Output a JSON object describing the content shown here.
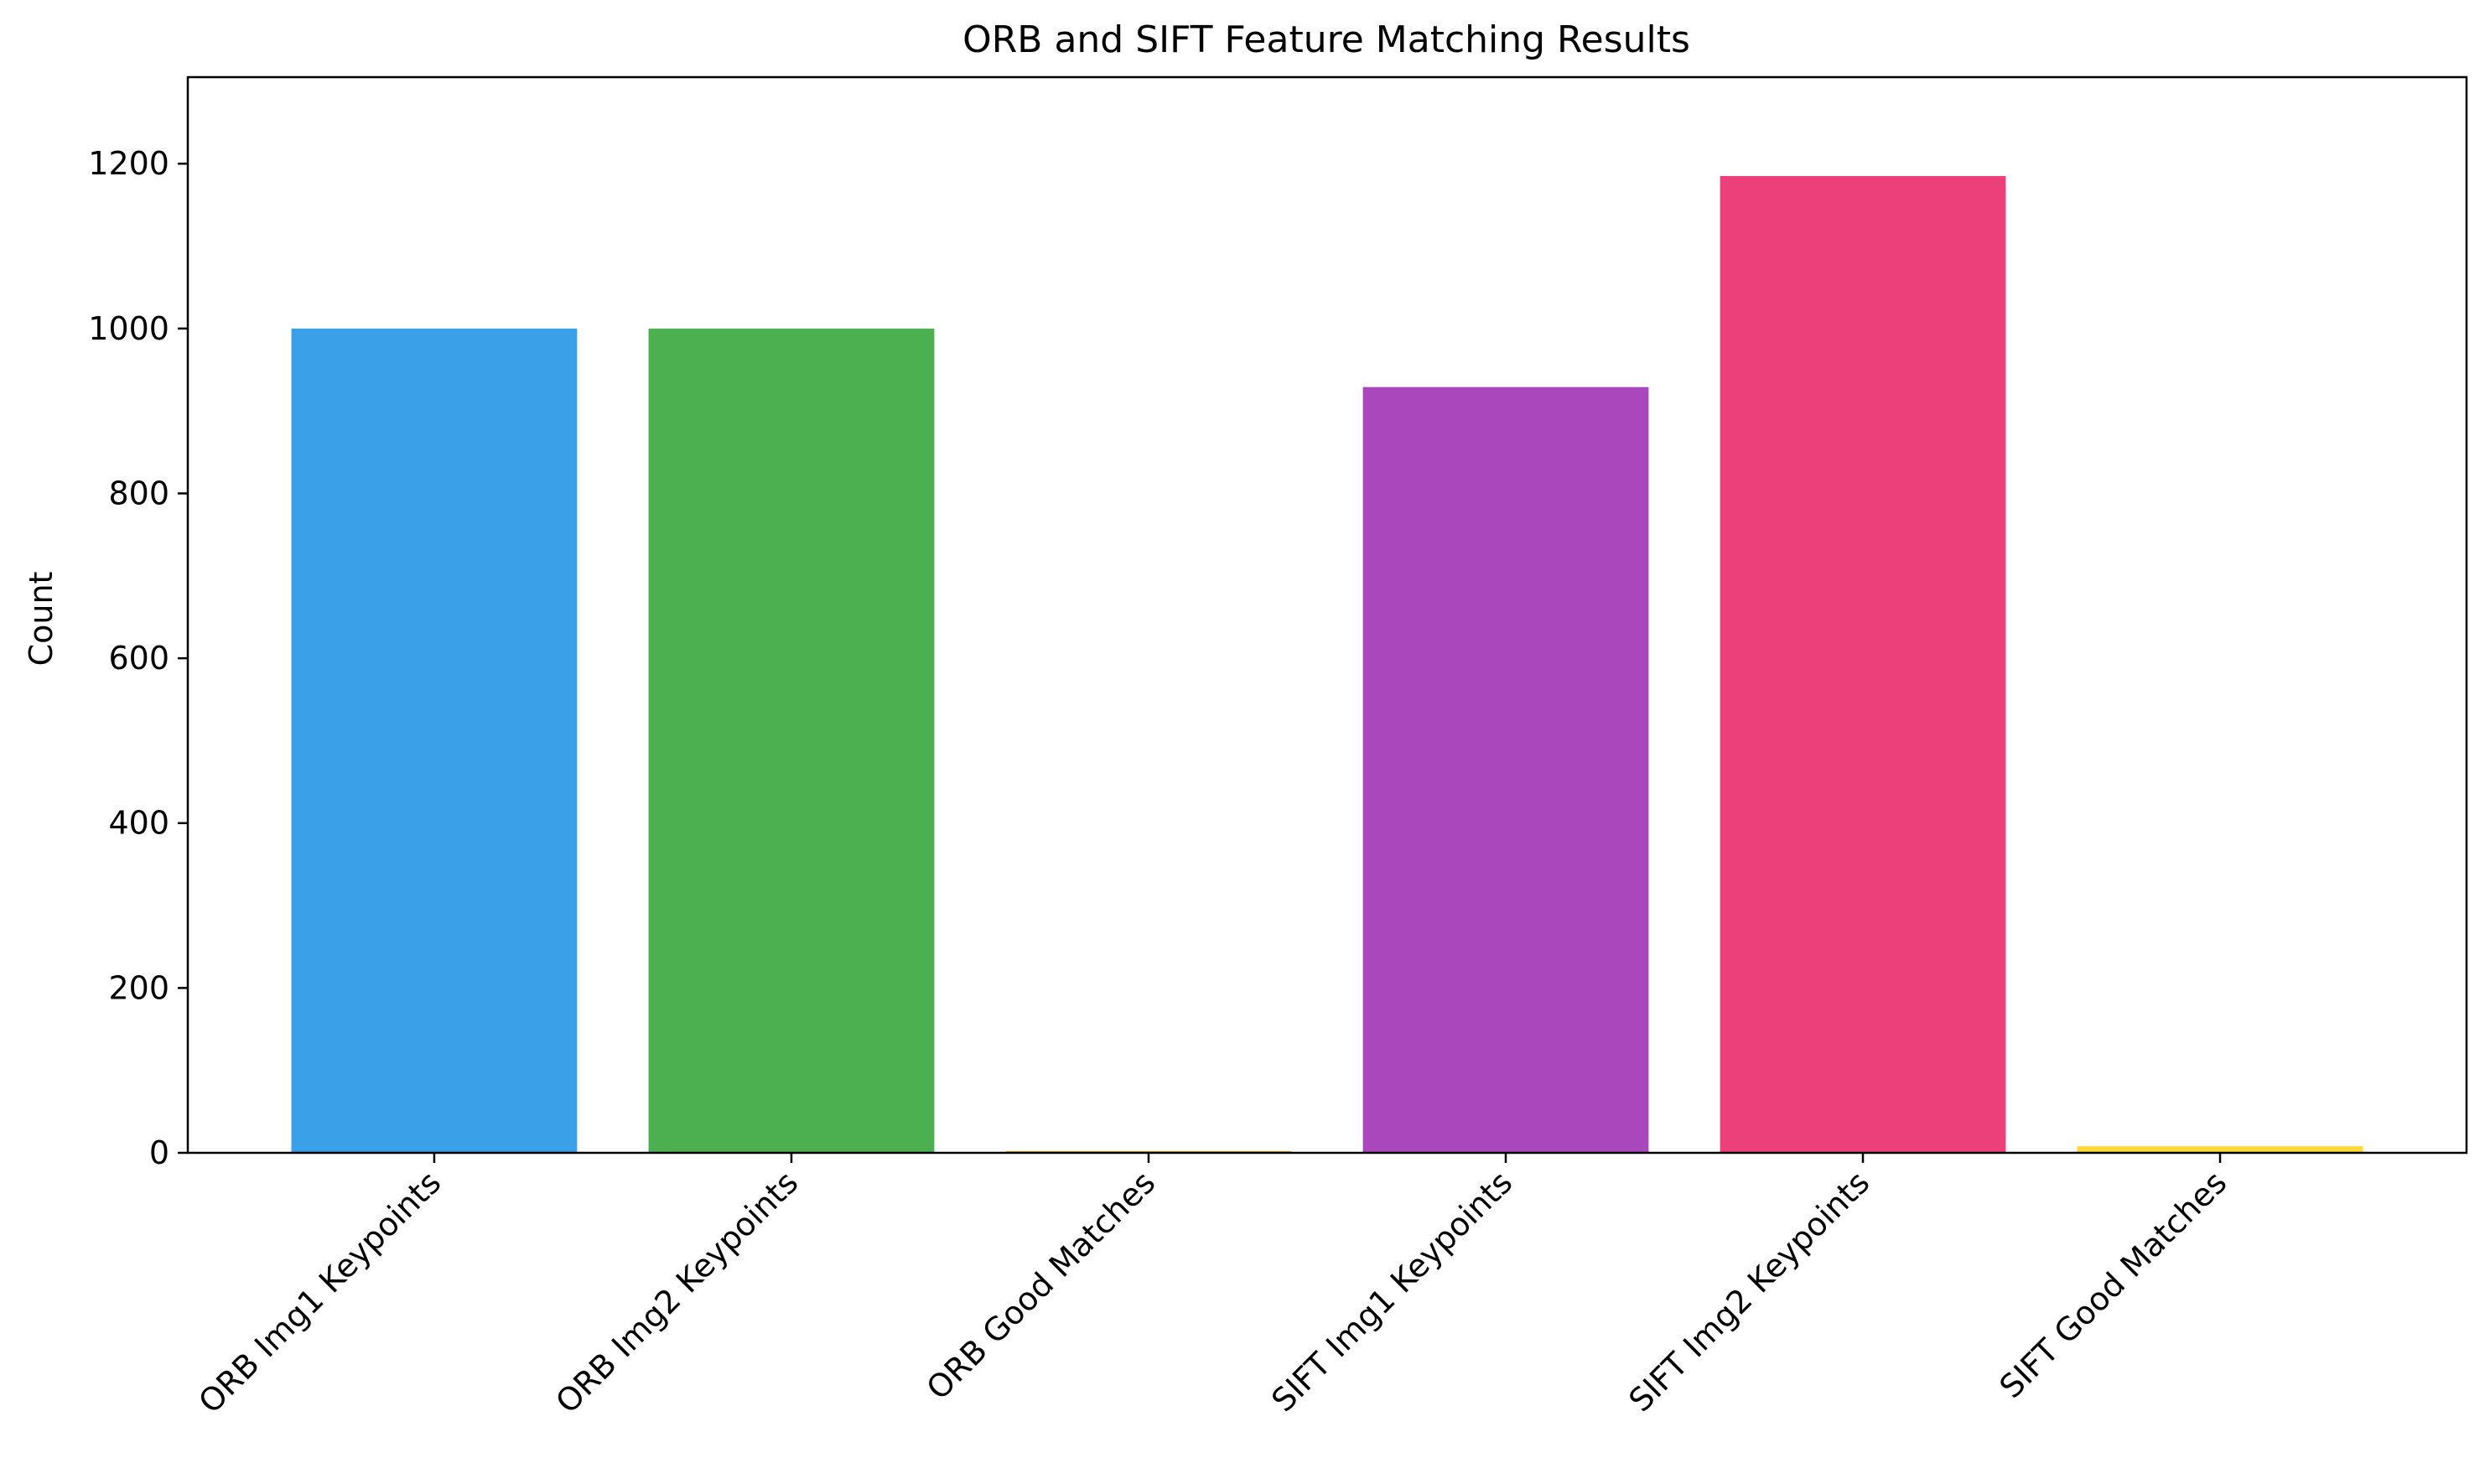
{
  "chart_data": {
    "type": "bar",
    "title": "ORB and SIFT Feature Matching Results",
    "xlabel": "",
    "ylabel": "Count",
    "categories": [
      "ORB Img1 Keypoints",
      "ORB Img2 Keypoints",
      "ORB Good Matches",
      "SIFT Img1 Keypoints",
      "SIFT Img2 Keypoints",
      "SIFT Good Matches"
    ],
    "values": [
      1000,
      1000,
      2,
      929,
      1185,
      8
    ],
    "colors": [
      "#3aa1e8",
      "#4caf50",
      "#ff9800",
      "#ab47bc",
      "#ec407a",
      "#fdd835"
    ],
    "ylim": [
      0,
      1305
    ],
    "yticks": [
      0,
      200,
      400,
      600,
      800,
      1000,
      1200
    ],
    "grid": false,
    "legend": "none"
  }
}
